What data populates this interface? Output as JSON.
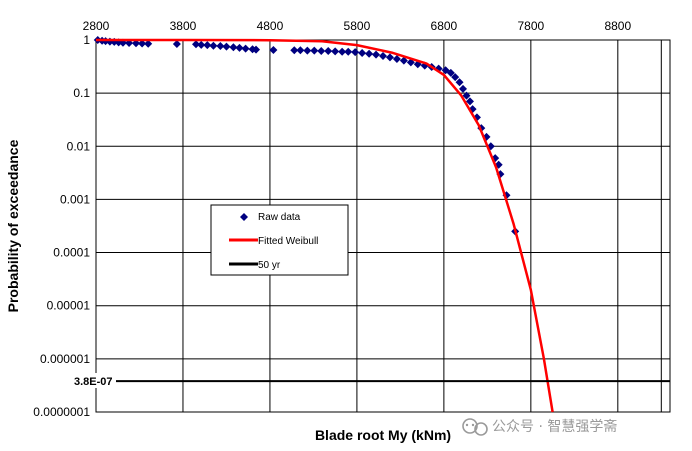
{
  "chart_data": {
    "type": "scatter",
    "title": "",
    "xlabel": "Blade root My (kNm)",
    "ylabel": "Probability of exceedance",
    "x_scale": "linear",
    "y_scale": "log",
    "xlim": [
      2800,
      9400
    ],
    "ylim": [
      1e-07,
      1
    ],
    "x_ticks": [
      "2800",
      "3800",
      "4800",
      "5800",
      "6800",
      "7800",
      "8800"
    ],
    "y_ticks": [
      "1",
      "0.1",
      "0.01",
      "0.001",
      "0.0001",
      "0.00001",
      "0.000001",
      "0.0000001"
    ],
    "grid": true,
    "legend_position": "center-left",
    "series": [
      {
        "name": "Raw data",
        "kind": "scatter",
        "color": "#000080",
        "marker": "diamond",
        "points": [
          [
            2820,
            1
          ],
          [
            2870,
            0.97
          ],
          [
            2910,
            0.95
          ],
          [
            2960,
            0.93
          ],
          [
            3010,
            0.92
          ],
          [
            3060,
            0.9
          ],
          [
            3110,
            0.89
          ],
          [
            3180,
            0.88
          ],
          [
            3260,
            0.87
          ],
          [
            3330,
            0.86
          ],
          [
            3400,
            0.85
          ],
          [
            3730,
            0.84
          ],
          [
            3950,
            0.83
          ],
          [
            4010,
            0.81
          ],
          [
            4080,
            0.8
          ],
          [
            4150,
            0.78
          ],
          [
            4230,
            0.77
          ],
          [
            4300,
            0.75
          ],
          [
            4380,
            0.73
          ],
          [
            4450,
            0.71
          ],
          [
            4520,
            0.69
          ],
          [
            4600,
            0.67
          ],
          [
            4640,
            0.66
          ],
          [
            4840,
            0.65
          ],
          [
            5080,
            0.64
          ],
          [
            5150,
            0.64
          ],
          [
            5230,
            0.63
          ],
          [
            5310,
            0.63
          ],
          [
            5390,
            0.62
          ],
          [
            5470,
            0.62
          ],
          [
            5550,
            0.61
          ],
          [
            5630,
            0.6
          ],
          [
            5700,
            0.6
          ],
          [
            5780,
            0.59
          ],
          [
            5860,
            0.57
          ],
          [
            5940,
            0.55
          ],
          [
            6020,
            0.53
          ],
          [
            6100,
            0.5
          ],
          [
            6180,
            0.47
          ],
          [
            6260,
            0.44
          ],
          [
            6340,
            0.41
          ],
          [
            6420,
            0.38
          ],
          [
            6500,
            0.35
          ],
          [
            6580,
            0.33
          ],
          [
            6660,
            0.31
          ],
          [
            6740,
            0.29
          ],
          [
            6820,
            0.27
          ],
          [
            6880,
            0.24
          ],
          [
            6930,
            0.2
          ],
          [
            6980,
            0.16
          ],
          [
            7020,
            0.12
          ],
          [
            7060,
            0.09
          ],
          [
            7100,
            0.07
          ],
          [
            7130,
            0.05
          ],
          [
            7180,
            0.035
          ],
          [
            7230,
            0.022
          ],
          [
            7290,
            0.015
          ],
          [
            7340,
            0.01
          ],
          [
            7390,
            0.006
          ],
          [
            7430,
            0.0045
          ],
          [
            7450,
            0.003
          ],
          [
            7520,
            0.0012
          ],
          [
            7620,
            0.00025
          ]
        ]
      },
      {
        "name": "Fitted Weibull",
        "kind": "line",
        "color": "#ff0000",
        "points": [
          [
            2800,
            1
          ],
          [
            3800,
            0.999
          ],
          [
            4800,
            0.99
          ],
          [
            5400,
            0.95
          ],
          [
            5800,
            0.8
          ],
          [
            6200,
            0.58
          ],
          [
            6600,
            0.36
          ],
          [
            6800,
            0.22
          ],
          [
            7000,
            0.09
          ],
          [
            7200,
            0.025
          ],
          [
            7400,
            0.004
          ],
          [
            7600,
            0.00035
          ],
          [
            7800,
            2e-05
          ],
          [
            7950,
            1e-06
          ],
          [
            8050,
            1e-07
          ]
        ]
      },
      {
        "name": "50 yr",
        "kind": "hline",
        "color": "#000000",
        "y": 3.8e-07
      }
    ],
    "annotations": [
      {
        "text": "3.8E-07",
        "y": 3.8e-07
      }
    ]
  },
  "watermark": {
    "icon": "wechat-official-account-icon",
    "text": "公众号 · 智慧强学斋"
  }
}
